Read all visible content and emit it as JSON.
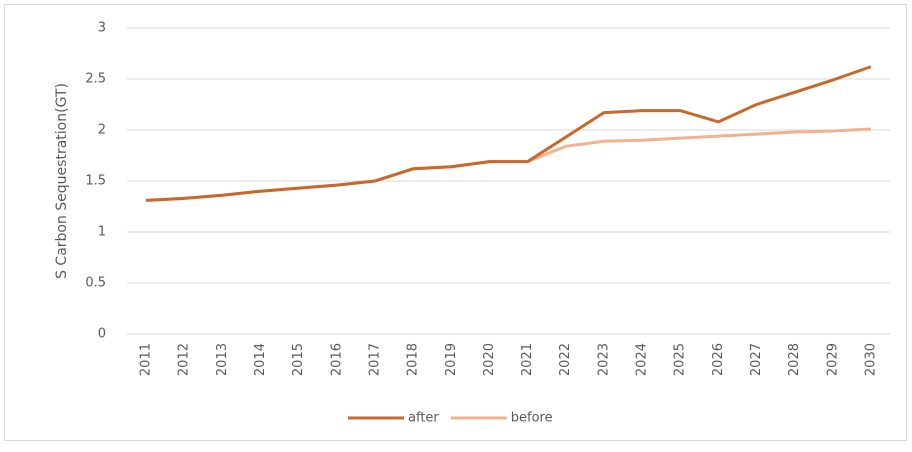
{
  "chart_data": {
    "type": "line",
    "y_label": "S  Carbon Sequestration(GT)",
    "categories": [
      "2011",
      "2012",
      "2013",
      "2014",
      "2015",
      "2016",
      "2017",
      "2018",
      "2019",
      "2020",
      "2021",
      "2022",
      "2023",
      "2024",
      "2025",
      "2026",
      "2027",
      "2028",
      "2029",
      "2030"
    ],
    "series": [
      {
        "name": "after",
        "color": "#c8682a",
        "values": [
          1.31,
          1.33,
          1.36,
          1.4,
          1.43,
          1.46,
          1.5,
          1.62,
          1.64,
          1.69,
          1.69,
          1.93,
          2.17,
          2.19,
          2.19,
          2.08,
          2.25,
          2.37,
          2.49,
          2.62
        ]
      },
      {
        "name": "before",
        "color": "#f4b18e",
        "values": [
          1.31,
          1.33,
          1.36,
          1.4,
          1.43,
          1.46,
          1.5,
          1.62,
          1.64,
          1.69,
          1.69,
          1.84,
          1.89,
          1.9,
          1.92,
          1.94,
          1.96,
          1.98,
          1.99,
          2.01
        ]
      }
    ],
    "ylim": [
      0,
      3
    ],
    "yticks": [
      0,
      0.5,
      1,
      1.5,
      2,
      2.5,
      3
    ],
    "grid": true,
    "legend": "bottom"
  }
}
